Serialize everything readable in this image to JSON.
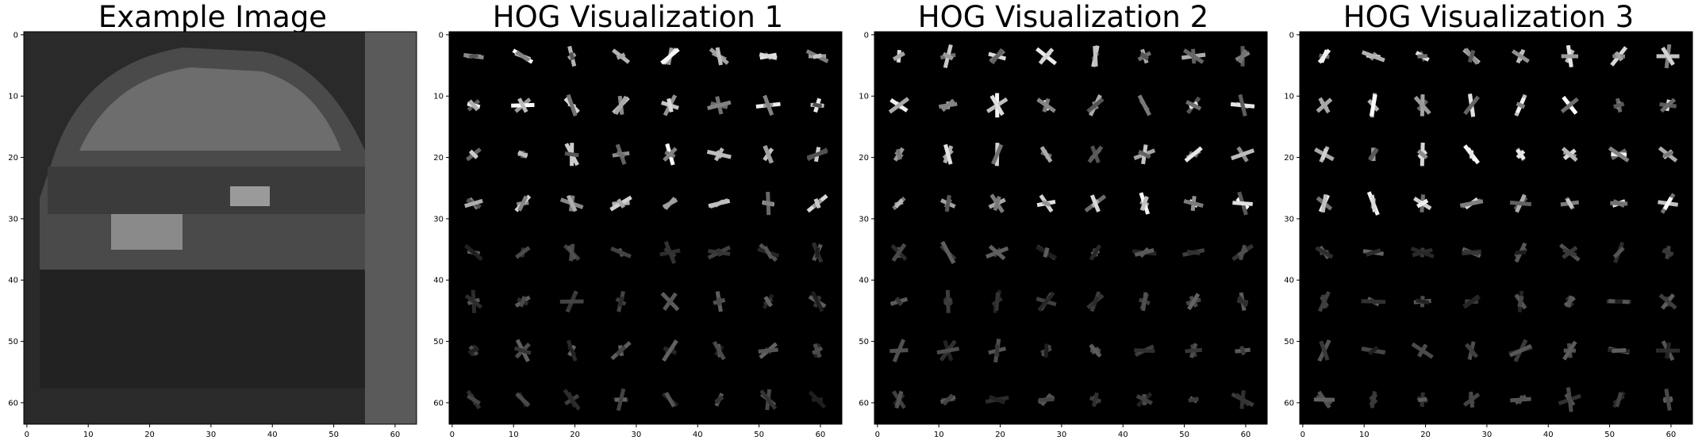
{
  "figure": {
    "panels": [
      {
        "title": "Example Image",
        "kind": "photo"
      },
      {
        "title": "HOG Visualization 1",
        "kind": "hog"
      },
      {
        "title": "HOG Visualization 2",
        "kind": "hog"
      },
      {
        "title": "HOG Visualization 3",
        "kind": "hog"
      }
    ],
    "x_ticks": [
      "0",
      "10",
      "20",
      "30",
      "40",
      "50",
      "60"
    ],
    "y_ticks": [
      "0",
      "10",
      "20",
      "30",
      "40",
      "50",
      "60"
    ],
    "image_extent": [
      0,
      64
    ],
    "colors": {
      "background": "#ffffff",
      "image_bg": "#000000",
      "axis": "#000000"
    }
  }
}
